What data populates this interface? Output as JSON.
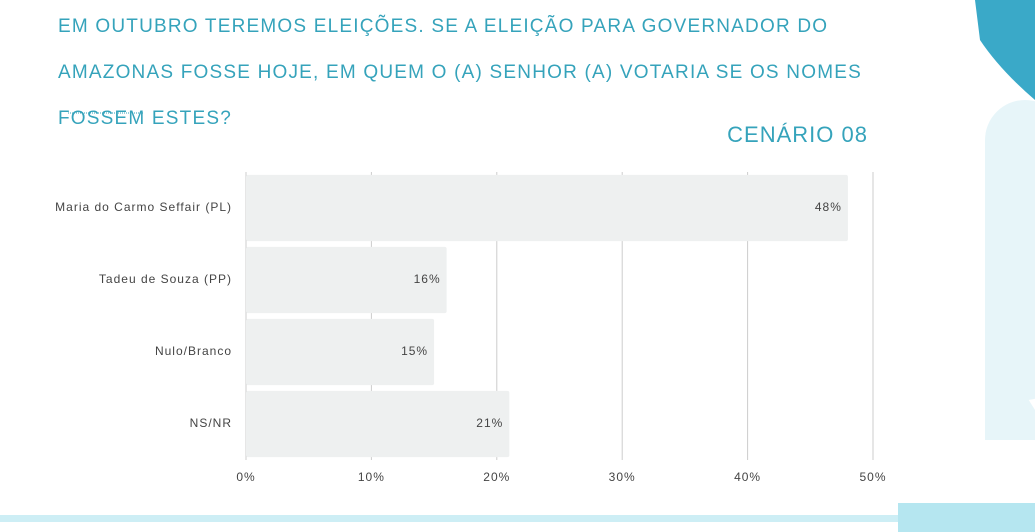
{
  "chart_data": {
    "type": "bar",
    "orientation": "horizontal",
    "title": "EM OUTUBRO TEREMOS ELEIÇÕES. SE A ELEIÇÃO PARA GOVERNADOR DO AMAZONAS FOSSE HOJE, EM QUEM O (A) SENHOR (A) VOTARIA SE OS NOMES FOSSEM ESTES?",
    "subtitle": "CENÁRIO 08",
    "categories": [
      "Maria do Carmo Seffair (PL)",
      "Tadeu de Souza (PP)",
      "Nulo/Branco",
      "NS/NR"
    ],
    "values": [
      48,
      16,
      15,
      21
    ],
    "value_labels": [
      "48%",
      "16%",
      "15%",
      "21%"
    ],
    "color": "#eef0f0",
    "xlim": [
      0,
      50
    ],
    "xticks": [
      {
        "value": 0,
        "label": "0%"
      },
      {
        "value": 10,
        "label": "10%"
      },
      {
        "value": 20,
        "label": "20%"
      },
      {
        "value": 30,
        "label": "30%"
      },
      {
        "value": 40,
        "label": "40%"
      },
      {
        "value": 50,
        "label": "50%"
      }
    ],
    "grid": true
  }
}
